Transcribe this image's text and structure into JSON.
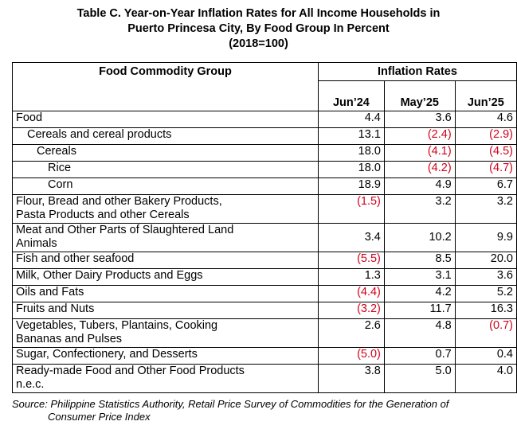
{
  "title": {
    "line1": "Table C. Year-on-Year Inflation Rates for All Income Households in",
    "line2": "Puerto Princesa City, By Food Group In Percent",
    "line3": "(2018=100)"
  },
  "headers": {
    "group": "Food Commodity Group",
    "rates": "Inflation Rates",
    "cols": [
      "Jun’24",
      "May’25",
      "Jun’25"
    ]
  },
  "rows": [
    {
      "label": "Food",
      "values": [
        "4.4",
        "3.6",
        "4.6"
      ]
    },
    {
      "label": "Cereals and cereal products",
      "values": [
        "13.1",
        "(2.4)",
        "(2.9)"
      ]
    },
    {
      "label": "Cereals",
      "values": [
        "18.0",
        "(4.1)",
        "(4.5)"
      ]
    },
    {
      "label": "Rice",
      "values": [
        "18.0",
        "(4.2)",
        "(4.7)"
      ]
    },
    {
      "label": "Corn",
      "values": [
        "18.9",
        "4.9",
        "6.7"
      ]
    },
    {
      "label": "Flour, Bread and other Bakery Products,",
      "label2": "Pasta Products and other Cereals",
      "values": [
        "(1.5)",
        "3.2",
        "3.2"
      ]
    },
    {
      "label": "Meat and Other Parts of Slaughtered Land",
      "label2": "Animals",
      "values": [
        "3.4",
        "10.2",
        "9.9"
      ]
    },
    {
      "label": "Fish and other seafood",
      "values": [
        "(5.5)",
        "8.5",
        "20.0"
      ]
    },
    {
      "label": "Milk, Other Dairy Products and Eggs",
      "values": [
        "1.3",
        "3.1",
        "3.6"
      ]
    },
    {
      "label": "Oils and Fats",
      "values": [
        "(4.4)",
        "4.2",
        "5.2"
      ]
    },
    {
      "label": "Fruits and Nuts",
      "values": [
        "(3.2)",
        "11.7",
        "16.3"
      ]
    },
    {
      "label": "Vegetables, Tubers, Plantains, Cooking",
      "label2": "Bananas and Pulses",
      "values": [
        "2.6",
        "4.8",
        "(0.7)"
      ]
    },
    {
      "label": "Sugar, Confectionery, and Desserts",
      "values": [
        "(5.0)",
        "0.7",
        "0.4"
      ]
    },
    {
      "label": "Ready-made Food and Other Food Products",
      "label2": "n.e.c.",
      "values": [
        "3.8",
        "5.0",
        "4.0"
      ]
    }
  ],
  "source": {
    "line1": "Source: Philippine Statistics Authority, Retail Price Survey of Commodities for the Generation of",
    "line2": "Consumer Price Index"
  },
  "colors": {
    "negative": "#d0021b"
  }
}
